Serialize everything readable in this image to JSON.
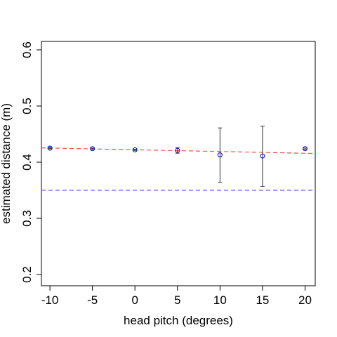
{
  "chart_data": {
    "type": "scatter",
    "xlabel": "head pitch (degrees)",
    "ylabel": "estimated distance (m)",
    "xlim": [
      -11,
      21.2
    ],
    "ylim": [
      0.18,
      0.615
    ],
    "x_ticks": [
      -10,
      -5,
      0,
      5,
      10,
      15,
      20
    ],
    "x_tick_labels": [
      "-10",
      "-5",
      "0",
      "5",
      "10",
      "15",
      "20"
    ],
    "y_ticks": [
      0.2,
      0.3,
      0.4,
      0.5,
      0.6
    ],
    "y_tick_labels": [
      "0.2",
      "0.3",
      "0.4",
      "0.5",
      "0.6"
    ],
    "grid": false,
    "legend": "none",
    "points": [
      {
        "x": -10,
        "y": 0.425,
        "err_low": 0.424,
        "err_high": 0.427
      },
      {
        "x": -5,
        "y": 0.424,
        "err_low": 0.423,
        "err_high": 0.425
      },
      {
        "x": 0,
        "y": 0.422,
        "err_low": 0.421,
        "err_high": 0.423
      },
      {
        "x": 5,
        "y": 0.421,
        "err_low": 0.416,
        "err_high": 0.426
      },
      {
        "x": 10,
        "y": 0.413,
        "err_low": 0.364,
        "err_high": 0.461
      },
      {
        "x": 15,
        "y": 0.411,
        "err_low": 0.357,
        "err_high": 0.464
      },
      {
        "x": 20,
        "y": 0.424,
        "err_low": 0.423,
        "err_high": 0.425
      }
    ],
    "fit_line": {
      "x": [
        -11,
        21.2
      ],
      "y": [
        0.4255,
        0.4155
      ]
    },
    "reference_line": {
      "y": 0.35
    },
    "colors": {
      "points": "#0000cc",
      "error_bars": "#333333",
      "fit_line": "#ff4d4d",
      "reference_line": "#6666ff",
      "axes": "#000000"
    }
  }
}
